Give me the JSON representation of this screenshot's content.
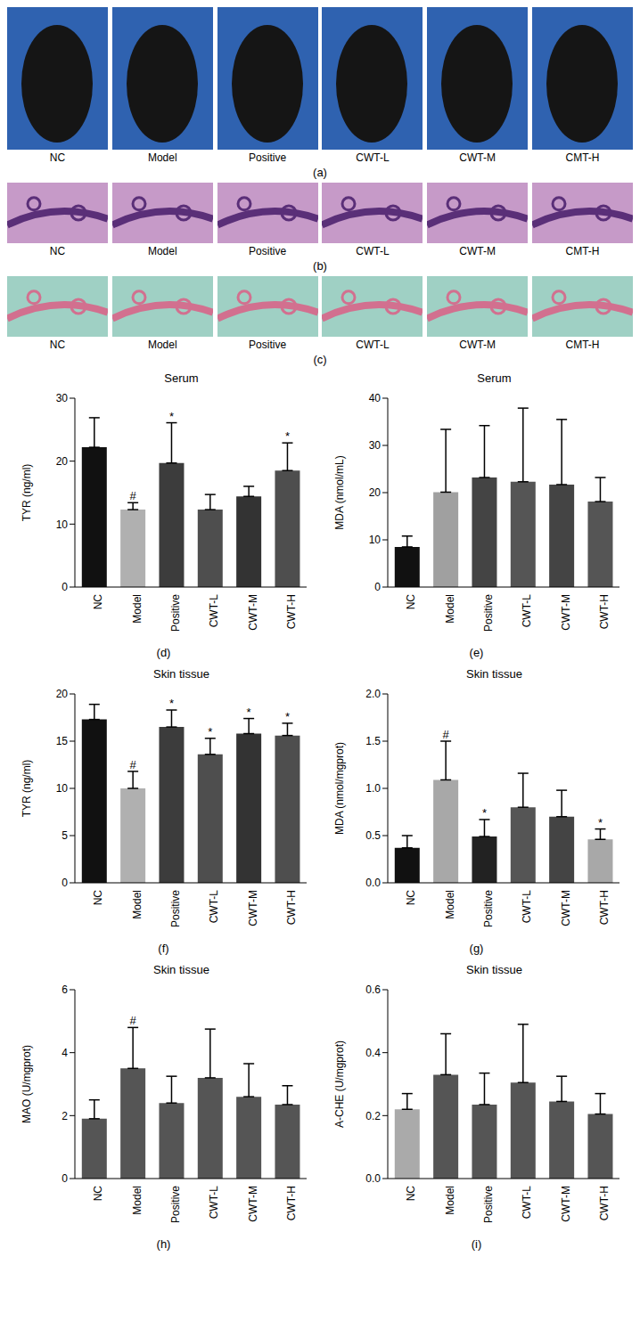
{
  "image_panels": [
    {
      "label": "(a)",
      "captions": [
        "NC",
        "Model",
        "Positive",
        "CWT-L",
        "CWT-M",
        "CMT-H"
      ]
    },
    {
      "label": "(b)",
      "captions": [
        "NC",
        "Model",
        "Positive",
        "CWT-L",
        "CWT-M",
        "CMT-H"
      ]
    },
    {
      "label": "(c)",
      "captions": [
        "NC",
        "Model",
        "Positive",
        "CWT-L",
        "CWT-M",
        "CMT-H"
      ]
    }
  ],
  "chart_data": [
    {
      "type": "bar",
      "label": "(d)",
      "title": "Serum",
      "y_label": "TYR (ng/ml)",
      "categories": [
        "NC",
        "Model",
        "Positive",
        "CWT-L",
        "CWT-M",
        "CWT-H"
      ],
      "values": [
        22.2,
        12.3,
        19.7,
        12.3,
        14.4,
        18.5
      ],
      "errors": [
        4.7,
        1.1,
        6.4,
        2.4,
        1.6,
        4.4
      ],
      "annotations": [
        null,
        "#",
        "*",
        null,
        null,
        "*"
      ],
      "colors": [
        "#111111",
        "#b0b0b0",
        "#3c3c3c",
        "#4e4e4e",
        "#333333",
        "#4e4e4e"
      ],
      "ylim": [
        0,
        30
      ],
      "yticks": [
        0,
        10,
        20,
        30
      ]
    },
    {
      "type": "bar",
      "label": "(e)",
      "title": "Serum",
      "y_label": "MDA (nmol/mL)",
      "categories": [
        "NC",
        "Model",
        "Positive",
        "CWT-L",
        "CWT-M",
        "CWT-H"
      ],
      "values": [
        8.5,
        20.1,
        23.2,
        22.3,
        21.7,
        18.1
      ],
      "errors": [
        2.3,
        13.3,
        11,
        15.6,
        13.8,
        5.1
      ],
      "annotations": [
        null,
        null,
        null,
        null,
        null,
        null
      ],
      "colors": [
        "#111111",
        "#a0a0a0",
        "#444444",
        "#555555",
        "#444444",
        "#555555"
      ],
      "ylim": [
        0,
        40
      ],
      "yticks": [
        0,
        10,
        20,
        30,
        40
      ]
    },
    {
      "type": "bar",
      "label": "(f)",
      "title": "Skin tissue",
      "y_label": "TYR (ng/ml)",
      "categories": [
        "NC",
        "Model",
        "Positive",
        "CWT-L",
        "CWT-M",
        "CWT-H"
      ],
      "values": [
        17.3,
        10.0,
        16.5,
        13.6,
        15.8,
        15.6
      ],
      "errors": [
        1.6,
        1.8,
        1.8,
        1.7,
        1.6,
        1.3
      ],
      "annotations": [
        null,
        "#",
        "*",
        "*",
        "*",
        "*"
      ],
      "colors": [
        "#111111",
        "#b0b0b0",
        "#3c3c3c",
        "#4e4e4e",
        "#333333",
        "#4e4e4e"
      ],
      "ylim": [
        0,
        20
      ],
      "yticks": [
        0,
        5,
        10,
        15,
        20
      ]
    },
    {
      "type": "bar",
      "label": "(g)",
      "title": "Skin tissue",
      "y_label": "MDA (nmol/mgprot)",
      "categories": [
        "NC",
        "Model",
        "Positive",
        "CWT-L",
        "CWT-M",
        "CWT-H"
      ],
      "values": [
        0.37,
        1.09,
        0.49,
        0.8,
        0.7,
        0.46
      ],
      "errors": [
        0.13,
        0.41,
        0.18,
        0.36,
        0.28,
        0.11
      ],
      "annotations": [
        null,
        "#",
        "*",
        null,
        null,
        "*"
      ],
      "colors": [
        "#111111",
        "#a8a8a8",
        "#222222",
        "#555555",
        "#444444",
        "#a8a8a8"
      ],
      "ylim": [
        0,
        2
      ],
      "yticks": [
        {
          "value": 0,
          "label": "0.0"
        },
        {
          "value": 0.5,
          "label": "0.5"
        },
        {
          "value": 1,
          "label": "1.0"
        },
        {
          "value": 1.5,
          "label": "1.5"
        },
        {
          "value": 2,
          "label": "2.0"
        }
      ]
    },
    {
      "type": "bar",
      "label": "(h)",
      "title": "Skin tissue",
      "y_label": "MAO (U/mgprot)",
      "categories": [
        "NC",
        "Model",
        "Positive",
        "CWT-L",
        "CWT-M",
        "CWT-H"
      ],
      "values": [
        1.9,
        3.5,
        2.4,
        3.2,
        2.6,
        2.35
      ],
      "errors": [
        0.6,
        1.3,
        0.85,
        1.55,
        1.05,
        0.6
      ],
      "annotations": [
        null,
        "#",
        null,
        null,
        null,
        null
      ],
      "colors": [
        "#555555",
        "#555555",
        "#555555",
        "#555555",
        "#555555",
        "#555555"
      ],
      "ylim": [
        0,
        6
      ],
      "yticks": [
        0,
        2,
        4,
        6
      ]
    },
    {
      "type": "bar",
      "label": "(i)",
      "title": "Skin tissue",
      "y_label": "A-CHE (U/mgprot)",
      "categories": [
        "NC",
        "Model",
        "Positive",
        "CWT-L",
        "CWT-M",
        "CWT-H"
      ],
      "values": [
        0.22,
        0.33,
        0.235,
        0.305,
        0.245,
        0.205
      ],
      "errors": [
        0.05,
        0.13,
        0.1,
        0.185,
        0.08,
        0.065
      ],
      "annotations": [
        null,
        null,
        null,
        null,
        null,
        null
      ],
      "colors": [
        "#aaaaaa",
        "#555555",
        "#555555",
        "#555555",
        "#555555",
        "#555555"
      ],
      "ylim": [
        0,
        0.6
      ],
      "yticks": [
        {
          "value": 0,
          "label": "0.0"
        },
        {
          "value": 0.2,
          "label": "0.2"
        },
        {
          "value": 0.4,
          "label": "0.4"
        },
        {
          "value": 0.6,
          "label": "0.6"
        }
      ]
    }
  ]
}
